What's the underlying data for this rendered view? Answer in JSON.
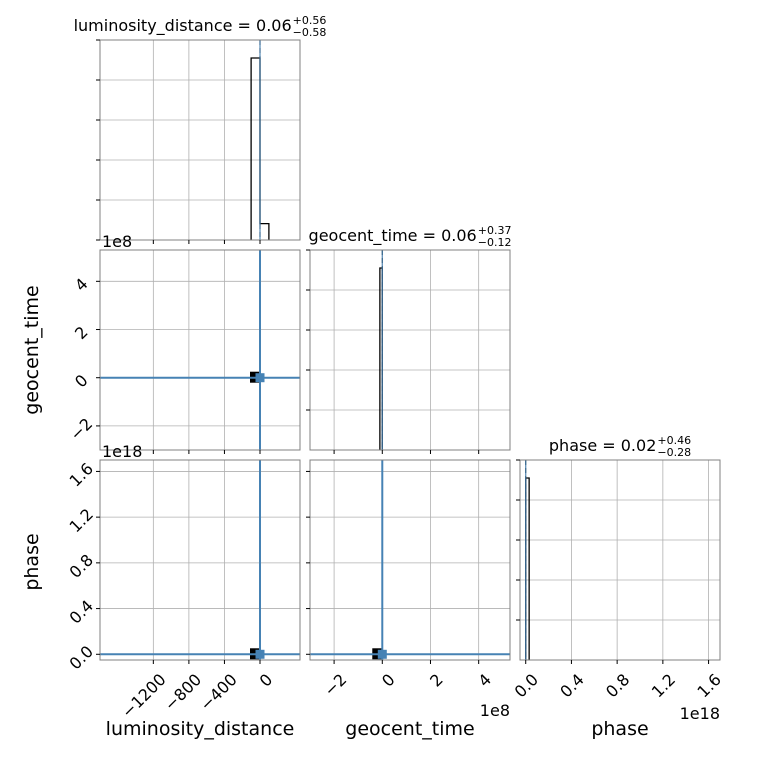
{
  "chart_data": {
    "type": "corner",
    "parameters": [
      "luminosity_distance",
      "geocent_time",
      "phase"
    ],
    "marginal_titles": [
      {
        "param": "luminosity_distance",
        "text": "luminosity_distance = 0.06",
        "sup": "+0.56",
        "sub": "−0.58"
      },
      {
        "param": "geocent_time",
        "text": "geocent_time = 0.06",
        "sup": "+0.37",
        "sub": "−0.12"
      },
      {
        "param": "phase",
        "text": "phase = 0.02",
        "sup": "+0.46",
        "sub": "−0.28"
      }
    ],
    "axis_labels": {
      "x": [
        "luminosity_distance",
        "geocent_time",
        "phase"
      ],
      "y": [
        "geocent_time",
        "phase"
      ]
    },
    "ranges": {
      "luminosity_distance": [
        -1800,
        450
      ],
      "geocent_time_e8": [
        -3,
        5.3
      ],
      "phase_e18": [
        -0.05,
        1.7
      ]
    },
    "scale_offsets": {
      "geocent_time_y": "1e8",
      "phase_y": "1e18",
      "geocent_time_x": "1e8",
      "phase_x": "1e18"
    },
    "ticks": {
      "luminosity_distance": [
        "−1200",
        "−800",
        "−400",
        "0"
      ],
      "luminosity_distance_values": [
        -1200,
        -800,
        -400,
        0
      ],
      "geocent_time": [
        "−2",
        "0",
        "2",
        "4"
      ],
      "geocent_time_values": [
        -2,
        0,
        2,
        4
      ],
      "phase": [
        "0.0",
        "0.4",
        "0.8",
        "1.2",
        "1.6"
      ],
      "phase_values": [
        0,
        0.4,
        0.8,
        1.2,
        1.6
      ]
    },
    "truths": {
      "luminosity_distance": 0,
      "geocent_time": 0,
      "phase": 0
    },
    "hist_luminosity_distance": {
      "edges": [
        -100,
        0,
        100
      ],
      "counts": [
        1.0,
        0.09
      ]
    },
    "hist_geocent_time": {
      "edges": [
        -0.1,
        0.0
      ],
      "counts": [
        1.0
      ]
    },
    "hist_phase": {
      "edges": [
        0.0,
        0.03
      ],
      "counts": [
        1.0
      ]
    },
    "grid": true,
    "colors": {
      "hist": "#000000",
      "truth": "#4682b4",
      "grid": "#b0b0b0",
      "frame": "#808080"
    }
  }
}
